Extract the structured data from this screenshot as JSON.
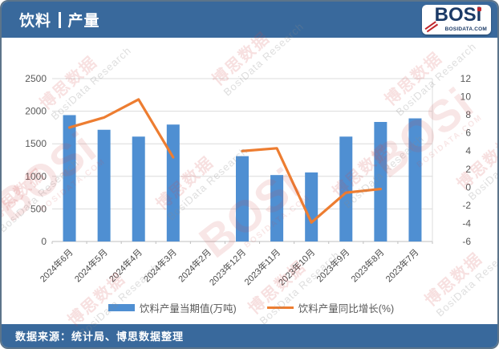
{
  "header": {
    "title_left": "饮料",
    "title_right": "产量",
    "logo_text": "BOSi",
    "logo_sub": "BOSIDATA.COM"
  },
  "legend": {
    "bar_label": "饮料产量当期值(万吨)",
    "line_label": "饮料产量同比增长(%)"
  },
  "footer": {
    "source_text": "数据来源：统计局、博思数据整理"
  },
  "watermark": {
    "brand": "BOSi",
    "brand_cn": "博思数据",
    "brand_en": "BosiData Research",
    "brand_domain": "BOSIDATA.COM"
  },
  "colors": {
    "header_blue": "#39699C",
    "bar_blue": "#4F8FD2",
    "line_orange": "#ED7D31",
    "axis_text": "#595959",
    "gridline": "#DCDCDC",
    "axis_line": "#BFBFBF",
    "logo_navy": "#1B3A66",
    "logo_red": "#C1272D",
    "watermark_red": "#D04848"
  },
  "chart_data": {
    "type": "combo",
    "title": "饮料 | 产量",
    "categories": [
      "2024年6月",
      "2024年5月",
      "2024年4月",
      "2024年3月",
      "2024年2月",
      "2023年12月",
      "2023年11月",
      "2023年10月",
      "2023年9月",
      "2023年8月",
      "2023年7月"
    ],
    "series": [
      {
        "name": "饮料产量当期值(万吨)",
        "type": "bar",
        "axis": "left",
        "color": "#4F8FD2",
        "values": [
          1940,
          1715,
          1610,
          1795,
          null,
          1310,
          1020,
          1060,
          1610,
          1835,
          1890
        ]
      },
      {
        "name": "饮料产量同比增长(%)",
        "type": "line",
        "axis": "right",
        "color": "#ED7D31",
        "values": [
          6.6,
          7.7,
          9.7,
          3.3,
          null,
          4.0,
          4.3,
          -3.9,
          -0.6,
          -0.2,
          null
        ]
      }
    ],
    "left_axis": {
      "min": 0,
      "max": 2500,
      "ticks": [
        0,
        500,
        1000,
        1500,
        2000,
        2500
      ]
    },
    "right_axis": {
      "min": -6,
      "max": 12,
      "ticks": [
        12,
        10,
        8,
        6,
        4,
        2,
        0,
        -2,
        -4,
        -6
      ]
    },
    "grid": true,
    "legend_position": "bottom"
  }
}
